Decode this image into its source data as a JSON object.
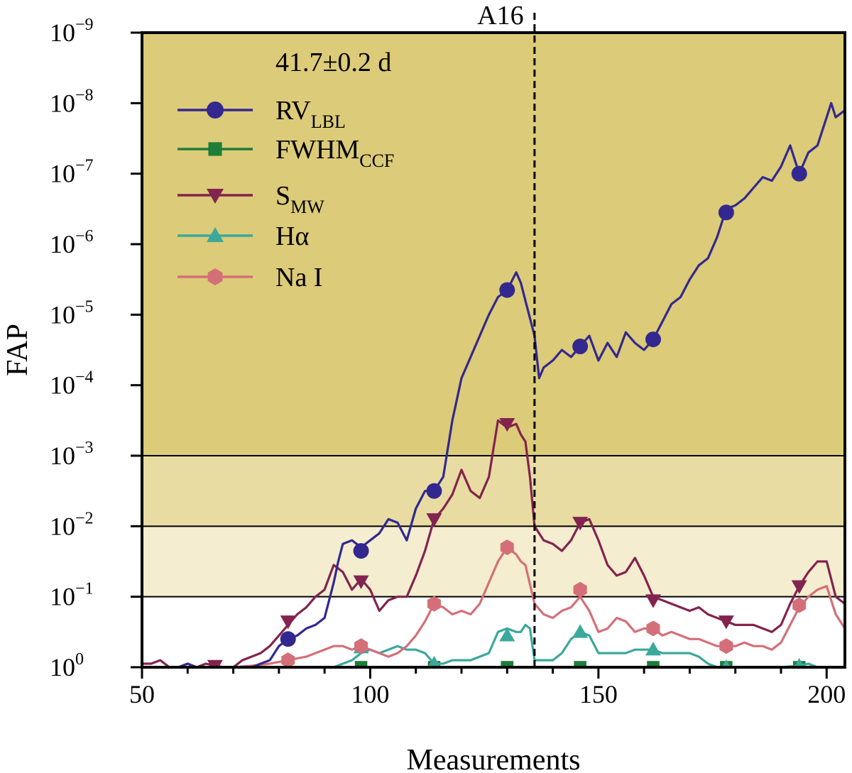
{
  "chart_data": {
    "type": "line",
    "title": "",
    "xlabel": "Measurements",
    "ylabel": "FAP",
    "xlim": [
      50,
      204
    ],
    "ylim_log10": [
      0,
      -9
    ],
    "y_scale": "log, inverted (FAP decreasing upward)",
    "x_ticks": [
      {
        "value": 50,
        "label": "50"
      },
      {
        "value": 100,
        "label": "100"
      },
      {
        "value": 150,
        "label": "150"
      },
      {
        "value": 200,
        "label": "200"
      }
    ],
    "y_ticks": [
      {
        "exp": 0,
        "base": "10",
        "sup": "0"
      },
      {
        "exp": -1,
        "base": "10",
        "sup": "−1"
      },
      {
        "exp": -2,
        "base": "10",
        "sup": "−2"
      },
      {
        "exp": -3,
        "base": "10",
        "sup": "−3"
      },
      {
        "exp": -4,
        "base": "10",
        "sup": "−4"
      },
      {
        "exp": -5,
        "base": "10",
        "sup": "−5"
      },
      {
        "exp": -6,
        "base": "10",
        "sup": "−6"
      },
      {
        "exp": -7,
        "base": "10",
        "sup": "−7"
      },
      {
        "exp": -8,
        "base": "10",
        "sup": "−8"
      },
      {
        "exp": -9,
        "base": "10",
        "sup": "−9"
      }
    ],
    "significance_bands": [
      {
        "from_exp": -9,
        "to_exp": -3,
        "color": "#dccb78"
      },
      {
        "from_exp": -3,
        "to_exp": -2,
        "color": "#e8dca3"
      },
      {
        "from_exp": -2,
        "to_exp": -1,
        "color": "#f4edcf"
      }
    ],
    "annotations": {
      "period_label": "41.7±0.2 d",
      "vline_x": 136,
      "vline_label": "A16"
    },
    "legend_position": "upper-left",
    "grid": false,
    "series": [
      {
        "name": "RV",
        "name_sub": "LBL",
        "color": "#33288f",
        "marker": "circle",
        "x": [
          50,
          52,
          54,
          56,
          58,
          60,
          62,
          64,
          66,
          68,
          70,
          72,
          74,
          76,
          78,
          80,
          82,
          84,
          86,
          88,
          90,
          92,
          93,
          94,
          96,
          98,
          100,
          102,
          104,
          106,
          108,
          110,
          112,
          114,
          116,
          118,
          120,
          122,
          124,
          126,
          128,
          130,
          132,
          133,
          134,
          136,
          137,
          138,
          140,
          142,
          144,
          146,
          148,
          150,
          152,
          154,
          156,
          158,
          160,
          162,
          164,
          166,
          168,
          170,
          172,
          174,
          176,
          178,
          180,
          182,
          184,
          186,
          188,
          190,
          192,
          194,
          196,
          198,
          200,
          201,
          202,
          204
        ],
        "logfap": [
          0,
          0,
          0,
          0,
          0,
          -0.05,
          0,
          0,
          0,
          0,
          0,
          0,
          0,
          -0.05,
          -0.1,
          -0.3,
          -0.4,
          -0.45,
          -0.55,
          -0.6,
          -0.7,
          -1.2,
          -1.5,
          -1.75,
          -1.8,
          -1.7,
          -1.8,
          -1.9,
          -2.1,
          -2.05,
          -1.8,
          -2.25,
          -2.5,
          -2.5,
          -2.7,
          -3.5,
          -4.1,
          -4.4,
          -4.7,
          -5.0,
          -5.25,
          -5.35,
          -5.6,
          -5.45,
          -5.2,
          -4.7,
          -4.1,
          -4.25,
          -4.35,
          -4.5,
          -4.4,
          -4.55,
          -4.7,
          -4.35,
          -4.6,
          -4.4,
          -4.75,
          -4.6,
          -4.5,
          -4.65,
          -4.9,
          -5.15,
          -5.25,
          -5.5,
          -5.7,
          -5.8,
          -6.1,
          -6.5,
          -6.55,
          -6.65,
          -6.8,
          -6.95,
          -6.9,
          -7.1,
          -7.4,
          -7.0,
          -7.3,
          -7.4,
          -7.8,
          -8.0,
          -7.8,
          -7.9
        ],
        "marker_x": [
          82,
          98,
          114,
          130,
          146,
          162,
          178,
          194
        ],
        "marker_logfap": [
          -0.4,
          -1.65,
          -2.5,
          -5.35,
          -4.55,
          -4.65,
          -6.45,
          -7.0
        ]
      },
      {
        "name": "FWHM",
        "name_sub": "CCF",
        "color": "#1f7d3a",
        "marker": "square",
        "x": [
          50,
          204
        ],
        "logfap": [
          0,
          0
        ],
        "marker_x": [
          98,
          114,
          130,
          146,
          162,
          178,
          194
        ],
        "marker_logfap": [
          0,
          0,
          0,
          0,
          0,
          0,
          0
        ]
      },
      {
        "name": "S",
        "name_sub": "MW",
        "color": "#83234f",
        "marker": "triangle-down",
        "x": [
          50,
          52,
          54,
          56,
          58,
          60,
          62,
          64,
          66,
          68,
          70,
          72,
          74,
          76,
          78,
          80,
          82,
          84,
          86,
          88,
          90,
          92,
          94,
          96,
          98,
          100,
          102,
          104,
          106,
          108,
          110,
          112,
          114,
          116,
          118,
          120,
          122,
          124,
          126,
          128,
          130,
          132,
          133,
          134,
          135,
          136,
          138,
          140,
          142,
          144,
          146,
          148,
          150,
          152,
          154,
          156,
          158,
          160,
          162,
          164,
          166,
          168,
          170,
          172,
          174,
          176,
          178,
          180,
          182,
          184,
          186,
          188,
          190,
          192,
          194,
          196,
          198,
          200,
          202,
          204
        ],
        "logfap": [
          -0.05,
          -0.05,
          -0.1,
          0,
          0,
          -0.05,
          0,
          -0.05,
          -0.02,
          0,
          0,
          -0.1,
          -0.15,
          -0.2,
          -0.3,
          -0.45,
          -0.6,
          -0.75,
          -0.85,
          -1.0,
          -1.1,
          -1.45,
          -1.35,
          -1.1,
          -1.25,
          -1.1,
          -0.8,
          -0.95,
          -1.0,
          -1.0,
          -1.3,
          -1.65,
          -2.1,
          -2.25,
          -2.45,
          -2.8,
          -2.5,
          -2.4,
          -2.7,
          -3.5,
          -3.4,
          -3.45,
          -3.3,
          -3.2,
          -2.7,
          -2.0,
          -1.8,
          -1.75,
          -1.65,
          -1.8,
          -2.05,
          -2.1,
          -1.8,
          -1.45,
          -1.3,
          -1.35,
          -1.55,
          -1.3,
          -1.0,
          -0.95,
          -0.9,
          -0.85,
          -0.8,
          -0.85,
          -0.75,
          -0.7,
          -0.65,
          -0.6,
          -0.6,
          -0.6,
          -0.55,
          -0.5,
          -0.6,
          -0.9,
          -1.15,
          -1.35,
          -1.5,
          -1.5,
          -1.0,
          -0.9
        ],
        "marker_x": [
          66,
          82,
          98,
          114,
          130,
          146,
          162,
          178,
          194
        ],
        "marker_logfap": [
          -0.02,
          -0.65,
          -1.22,
          -2.1,
          -3.45,
          -2.05,
          -0.95,
          -0.65,
          -1.15
        ]
      },
      {
        "name": "Hα",
        "name_sub": "",
        "color": "#3ba89b",
        "marker": "triangle-up",
        "x": [
          50,
          88,
          90,
          92,
          94,
          96,
          98,
          100,
          102,
          104,
          106,
          108,
          110,
          112,
          114,
          116,
          118,
          120,
          122,
          124,
          126,
          128,
          130,
          132,
          133,
          134,
          135,
          136,
          140,
          142,
          144,
          146,
          148,
          150,
          152,
          154,
          156,
          158,
          160,
          162,
          164,
          166,
          168,
          170,
          172,
          174,
          176,
          178,
          180,
          190,
          194,
          196,
          198,
          200,
          202,
          204
        ],
        "logfap": [
          0,
          0,
          0,
          0,
          -0.05,
          -0.1,
          -0.2,
          -0.25,
          -0.2,
          -0.25,
          -0.3,
          -0.25,
          -0.25,
          -0.2,
          -0.05,
          -0.05,
          -0.1,
          -0.1,
          -0.1,
          -0.15,
          -0.2,
          -0.5,
          -0.55,
          -0.5,
          -0.5,
          -0.6,
          -0.55,
          -0.1,
          -0.1,
          -0.2,
          -0.4,
          -0.5,
          -0.45,
          -0.2,
          -0.2,
          -0.2,
          -0.2,
          -0.25,
          -0.25,
          -0.25,
          -0.2,
          -0.2,
          -0.2,
          -0.2,
          -0.15,
          -0.05,
          0,
          0,
          0,
          0,
          -0.02,
          -0.05,
          0,
          0,
          0,
          0
        ],
        "marker_x": [
          98,
          114,
          130,
          146,
          162,
          178,
          194
        ],
        "marker_logfap": [
          -0.28,
          -0.05,
          -0.45,
          -0.5,
          -0.25,
          0,
          -0.02
        ]
      },
      {
        "name": "Na I",
        "name_sub": "",
        "color": "#d46f78",
        "marker": "hexagon",
        "x": [
          50,
          60,
          66,
          70,
          74,
          78,
          82,
          86,
          88,
          90,
          92,
          94,
          96,
          98,
          100,
          102,
          104,
          106,
          108,
          110,
          112,
          114,
          116,
          118,
          120,
          122,
          124,
          126,
          128,
          130,
          132,
          133,
          134,
          136,
          138,
          140,
          142,
          144,
          146,
          148,
          150,
          152,
          154,
          156,
          158,
          160,
          162,
          164,
          166,
          168,
          170,
          172,
          174,
          176,
          178,
          180,
          182,
          184,
          186,
          188,
          190,
          192,
          194,
          196,
          198,
          200,
          202,
          204
        ],
        "logfap": [
          0,
          0,
          0,
          0,
          -0.02,
          -0.05,
          -0.1,
          -0.15,
          -0.2,
          -0.25,
          -0.3,
          -0.3,
          -0.25,
          -0.3,
          -0.25,
          -0.2,
          -0.15,
          -0.2,
          -0.3,
          -0.45,
          -0.65,
          -0.9,
          -0.85,
          -0.75,
          -0.8,
          -0.75,
          -0.9,
          -1.2,
          -1.5,
          -1.7,
          -1.6,
          -1.5,
          -1.45,
          -0.9,
          -0.75,
          -0.7,
          -0.8,
          -0.85,
          -1.0,
          -0.8,
          -0.5,
          -0.55,
          -0.7,
          -0.65,
          -0.5,
          -0.55,
          -0.55,
          -0.45,
          -0.5,
          -0.45,
          -0.4,
          -0.4,
          -0.35,
          -0.3,
          -0.3,
          -0.3,
          -0.35,
          -0.3,
          -0.3,
          -0.25,
          -0.35,
          -0.6,
          -0.85,
          -1.0,
          -1.1,
          -1.15,
          -0.75,
          -0.55
        ],
        "marker_x": [
          82,
          98,
          114,
          130,
          146,
          162,
          178,
          194
        ],
        "marker_logfap": [
          -0.1,
          -0.3,
          -0.9,
          -1.7,
          -1.1,
          -0.55,
          -0.3,
          -0.88
        ]
      }
    ]
  }
}
